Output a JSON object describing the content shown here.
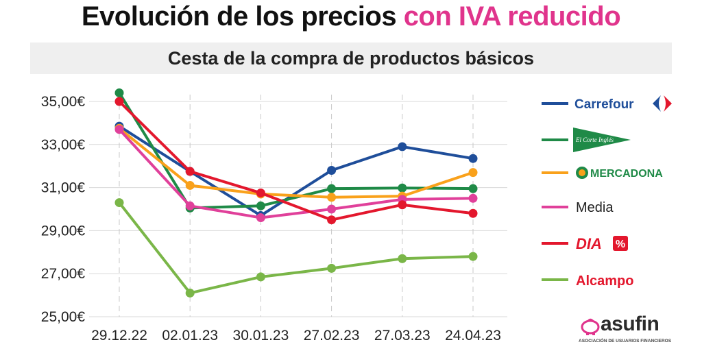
{
  "title": {
    "main": "Evolución de los precios",
    "accent": "con IVA reducido"
  },
  "subtitle": "Cesta de la compra de productos básicos",
  "colors": {
    "accent": "#e0348c",
    "carrefour": "#1f4e9a",
    "elcorteingles": "#1f8a47",
    "mercadona": "#f9a11b",
    "media": "#e0409a",
    "dia": "#e3172d",
    "alcampo": "#7ab648"
  },
  "chart_data": {
    "type": "line",
    "categories": [
      "29.12.22",
      "02.01.23",
      "30.01.23",
      "27.02.23",
      "27.03.23",
      "24.04.23"
    ],
    "ylim": [
      25,
      36
    ],
    "yticks": [
      25,
      27,
      29,
      31,
      33,
      35
    ],
    "ytick_labels": [
      "25,00€",
      "27,00€",
      "29,00€",
      "31,00€",
      "33,00€",
      "35,00€"
    ],
    "series": [
      {
        "name": "Carrefour",
        "color": "#1f4e9a",
        "values": [
          33.85,
          31.75,
          29.7,
          31.8,
          32.9,
          32.35
        ]
      },
      {
        "name": "El Corte Inglés",
        "color": "#1f8a47",
        "values": [
          35.4,
          30.05,
          30.15,
          30.95,
          30.98,
          30.95
        ]
      },
      {
        "name": "Mercadona",
        "color": "#f9a11b",
        "values": [
          33.75,
          31.1,
          30.7,
          30.55,
          30.6,
          31.7
        ]
      },
      {
        "name": "Media",
        "color": "#e0409a",
        "values": [
          33.7,
          30.15,
          29.6,
          30.0,
          30.45,
          30.5
        ]
      },
      {
        "name": "Dia",
        "color": "#e3172d",
        "values": [
          35.0,
          31.75,
          30.75,
          29.5,
          30.2,
          29.8
        ]
      },
      {
        "name": "Alcampo",
        "color": "#7ab648",
        "values": [
          30.3,
          26.1,
          26.85,
          27.25,
          27.7,
          27.8
        ]
      }
    ]
  },
  "legend": {
    "carrefour": "Carrefour",
    "elcorteingles": "El Corte Inglés",
    "mercadona": "MERCADONA",
    "media": "Media",
    "dia": "DIA",
    "alcampo": "Alcampo"
  },
  "footer": {
    "brand": "asufin",
    "tagline": "ASOCIACIÓN DE USUARIOS FINANCIEROS"
  }
}
